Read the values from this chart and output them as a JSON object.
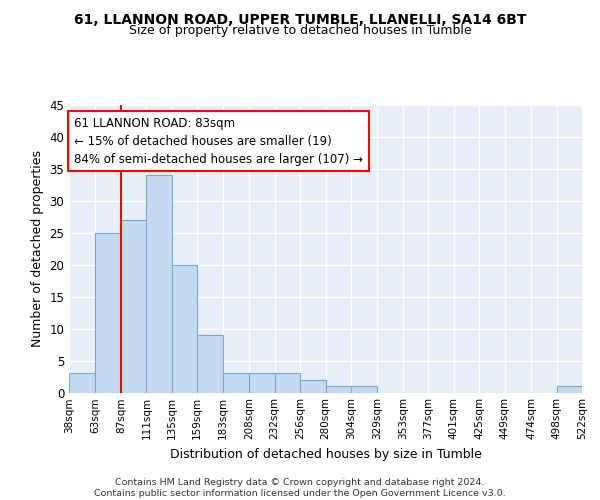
{
  "title1": "61, LLANNON ROAD, UPPER TUMBLE, LLANELLI, SA14 6BT",
  "title2": "Size of property relative to detached houses in Tumble",
  "xlabel": "Distribution of detached houses by size in Tumble",
  "ylabel": "Number of detached properties",
  "bar_color": "#c5d9f0",
  "bar_edge_color": "#6baed6",
  "background_color": "#e8eef7",
  "grid_color": "#ffffff",
  "annotation_line1": "61 LLANNON ROAD: 83sqm",
  "annotation_line2": "← 15% of detached houses are smaller (19)",
  "annotation_line3": "84% of semi-detached houses are larger (107) →",
  "vline_x": 87,
  "footer": "Contains HM Land Registry data © Crown copyright and database right 2024.\nContains public sector information licensed under the Open Government Licence v3.0.",
  "bins": [
    38,
    63,
    87,
    111,
    135,
    159,
    183,
    208,
    232,
    256,
    280,
    304,
    329,
    353,
    377,
    401,
    425,
    449,
    474,
    498,
    522
  ],
  "counts": [
    3,
    25,
    27,
    34,
    20,
    9,
    3,
    3,
    3,
    2,
    1,
    1,
    0,
    0,
    0,
    0,
    0,
    0,
    0,
    1
  ],
  "ylim": [
    0,
    45
  ],
  "yticks": [
    0,
    5,
    10,
    15,
    20,
    25,
    30,
    35,
    40,
    45
  ]
}
